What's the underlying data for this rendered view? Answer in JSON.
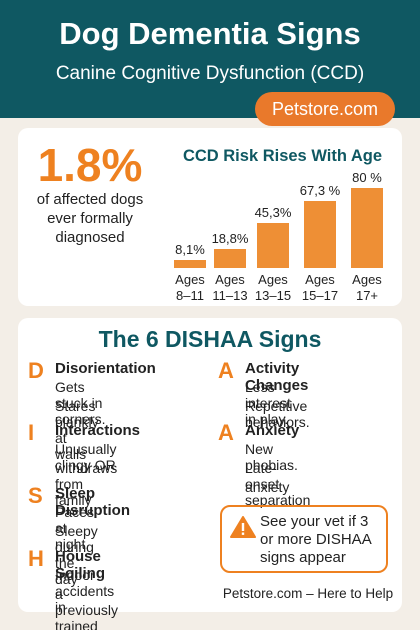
{
  "header": {
    "title": "Dog Dementia Signs",
    "subtitle": "Canine Cognitive Dysfunction (CCD)",
    "badge": "Petstore.com"
  },
  "stat": {
    "value": "1.8%",
    "caption": "of affected dogs ever formally diagnosed"
  },
  "chart_data": {
    "type": "bar",
    "title": "CCD Risk Rises With Age",
    "categories": [
      "Ages 8–11",
      "Ages 11–13",
      "Ages 13–15",
      "Ages 15–17",
      "Ages 17+"
    ],
    "values": [
      8.1,
      18.8,
      45.3,
      67.3,
      80
    ],
    "value_labels": [
      "8,1%",
      "18,8%",
      "45,3%",
      "67,3 %",
      "80 %"
    ],
    "color": "#ee8f35",
    "ylim": [
      0,
      80
    ]
  },
  "signs": {
    "title": "The 6 DISHAA Signs",
    "items": [
      {
        "letter": "D",
        "name": "Disorientation",
        "lines": [
          "Gets stuck in corners.",
          "Stares blankly at walls"
        ]
      },
      {
        "letter": "I",
        "name": "Interactions",
        "lines": [
          "Unusually clingy OR",
          "withdraws from family"
        ]
      },
      {
        "letter": "S",
        "name": "Sleep Disruption",
        "lines": [
          "Paces at night.",
          "Sleepy during the day"
        ]
      },
      {
        "letter": "H",
        "name": "House Soiling",
        "lines": [
          "Indoor accidents in",
          "a previously trained dog"
        ]
      },
      {
        "letter": "A",
        "name": "Activity Changes",
        "lines": [
          "Less interest in play.",
          "Repetitive behaviors."
        ]
      },
      {
        "letter": "A",
        "name": "Anxiety",
        "lines": [
          "New phobias.",
          "Late-onset separation",
          "anxiety"
        ]
      }
    ]
  },
  "warning": "See your vet if 3 or more DISHAA signs appear",
  "footer": "Petstore.com – Here to Help"
}
